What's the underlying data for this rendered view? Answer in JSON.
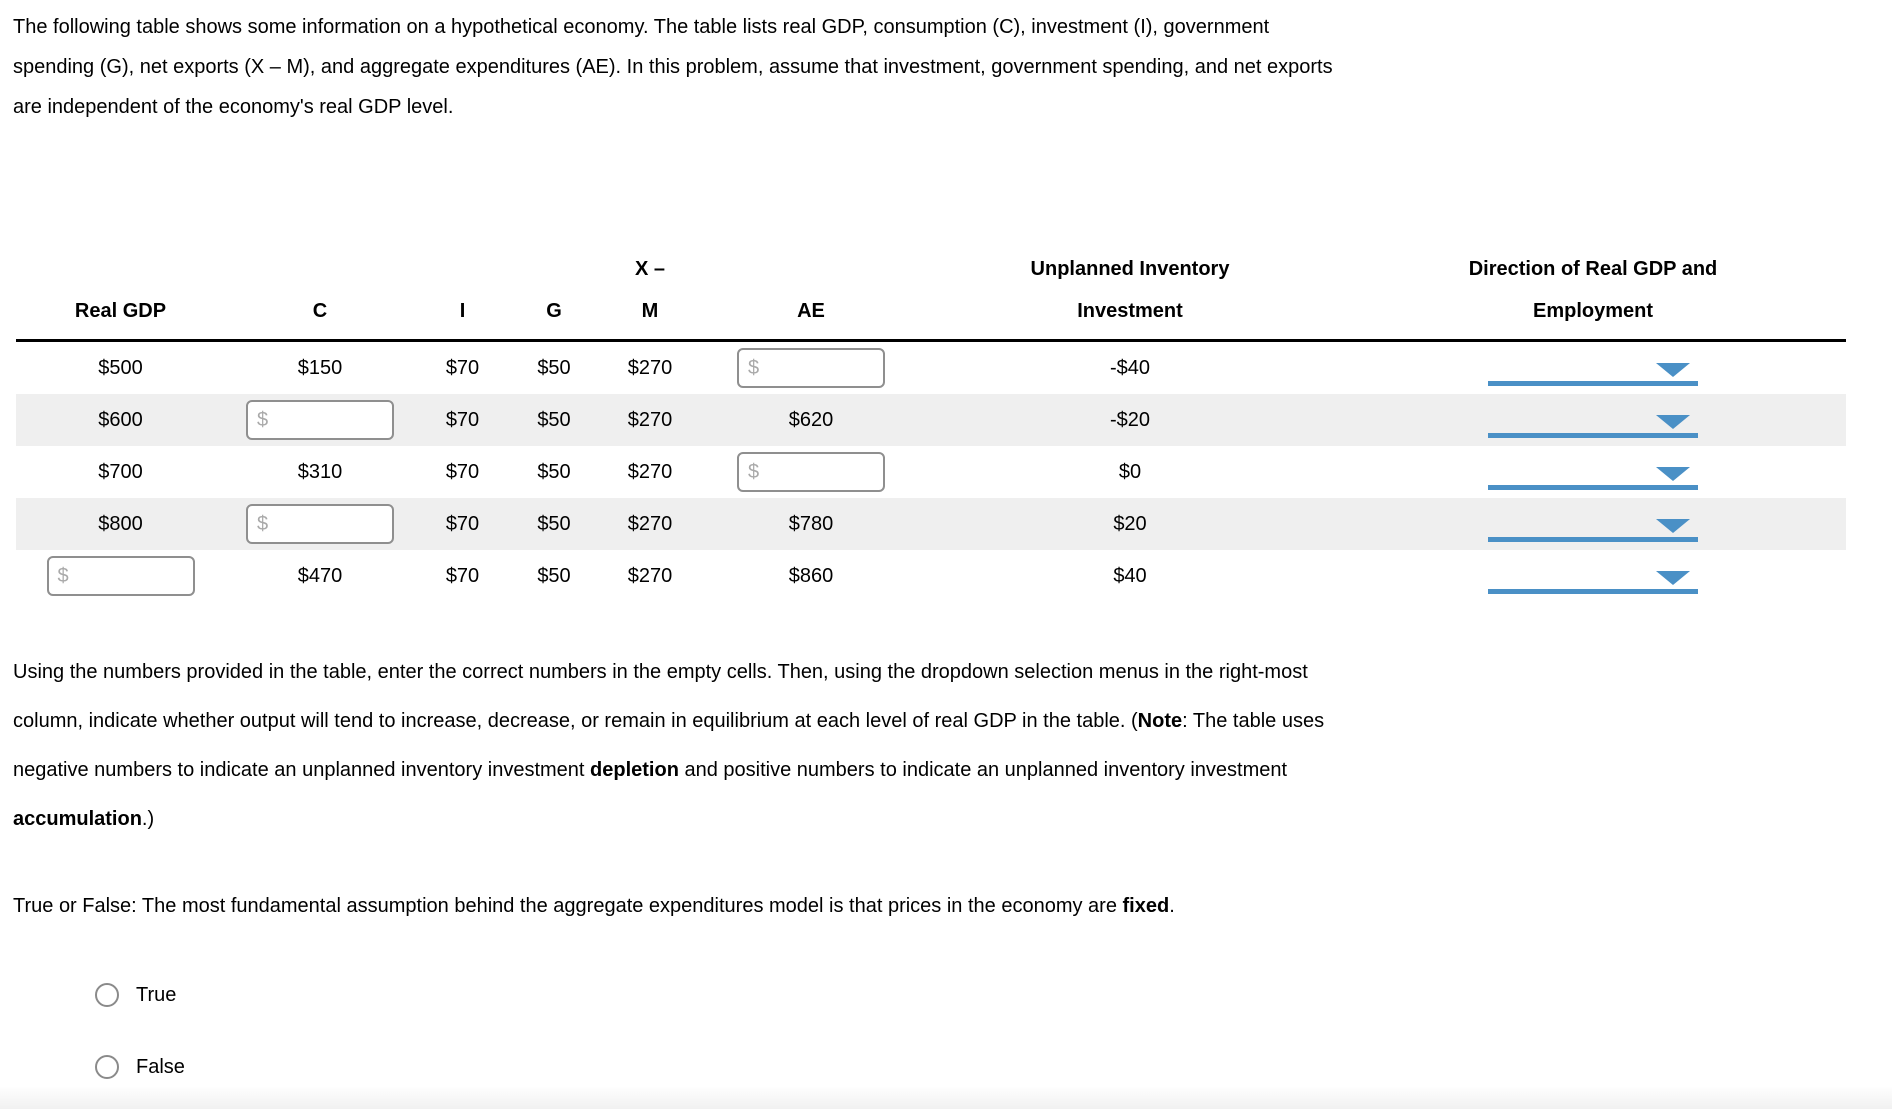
{
  "page": {
    "accent_blue": "#4a90c6",
    "shaded_row_color": "#efefef"
  },
  "intro": {
    "lines": [
      "The following table shows some information on a hypothetical economy. The table lists real GDP, consumption (C), investment (I), government",
      "spending (G), net exports (X – M), and aggregate expenditures (AE). In this problem, assume that investment, government spending, and net exports",
      "are independent of the economy's real GDP level."
    ]
  },
  "table": {
    "headers": {
      "real_gdp": "Real GDP",
      "c": "C",
      "i": "I",
      "g": "G",
      "xm_line1": "X –",
      "xm_line2": "M",
      "ae": "AE",
      "uii_line1": "Unplanned Inventory",
      "uii_line2": "Investment",
      "dir_line1": "Direction of Real GDP and",
      "dir_line2": "Employment"
    },
    "currency_symbol": "$",
    "rows": [
      {
        "real_gdp": "$500",
        "c": "$150",
        "i": "$70",
        "g": "$50",
        "xm": "$270",
        "ae": "",
        "uii": "-$40"
      },
      {
        "real_gdp": "$600",
        "c": "",
        "i": "$70",
        "g": "$50",
        "xm": "$270",
        "ae": "$620",
        "uii": "-$20"
      },
      {
        "real_gdp": "$700",
        "c": "$310",
        "i": "$70",
        "g": "$50",
        "xm": "$270",
        "ae": "",
        "uii": "$0"
      },
      {
        "real_gdp": "$800",
        "c": "",
        "i": "$70",
        "g": "$50",
        "xm": "$270",
        "ae": "$780",
        "uii": "$20"
      },
      {
        "real_gdp": "",
        "c": "$470",
        "i": "$70",
        "g": "$50",
        "xm": "$270",
        "ae": "$860",
        "uii": "$40"
      }
    ]
  },
  "instructions": {
    "lines": [
      [
        {
          "t": "Using the numbers provided in the table, enter the correct numbers in the empty cells. Then, using the dropdown selection menus in the right-most"
        }
      ],
      [
        {
          "t": "column, indicate whether output will tend to increase, decrease, or remain in equilibrium at each level of real GDP in the table. ("
        },
        {
          "t": "Note",
          "b": true
        },
        {
          "t": ": The table uses"
        }
      ],
      [
        {
          "t": "negative numbers to indicate an unplanned inventory investment "
        },
        {
          "t": "depletion",
          "b": true
        },
        {
          "t": " and positive numbers to indicate an unplanned inventory investment"
        }
      ],
      [
        {
          "t": "accumulation",
          "b": true
        },
        {
          "t": ".)"
        }
      ]
    ]
  },
  "question": {
    "line": [
      {
        "t": "True or False: The most fundamental assumption behind the aggregate expenditures model is that prices in the economy are "
      },
      {
        "t": "fixed",
        "b": true
      },
      {
        "t": "."
      }
    ],
    "options": [
      {
        "label": "True"
      },
      {
        "label": "False"
      }
    ]
  }
}
